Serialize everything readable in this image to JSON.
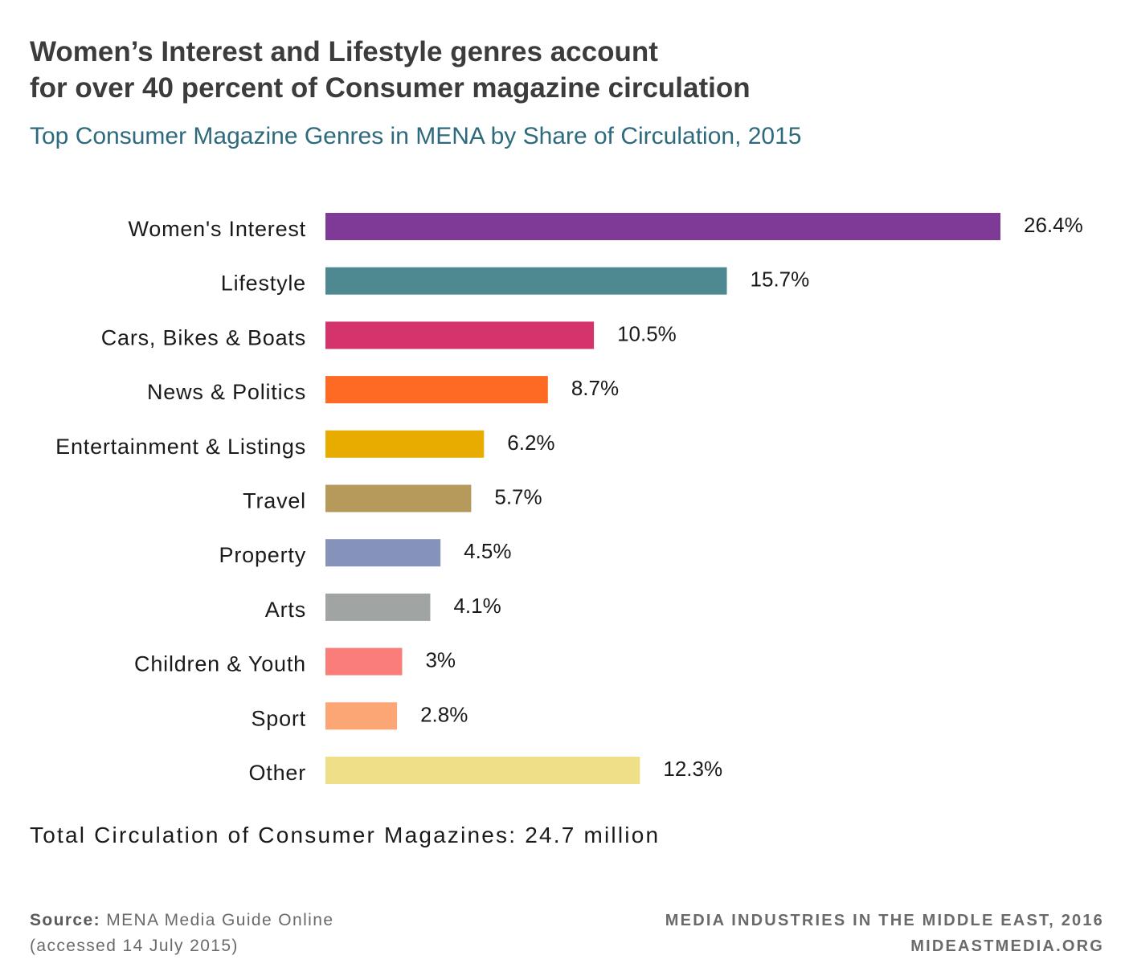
{
  "header": {
    "title_line1": "Women’s Interest and Lifestyle genres account",
    "title_line2": "for over 40 percent of Consumer magazine circulation",
    "subtitle": "Top Consumer Magazine Genres in MENA by Share of Circulation, 2015"
  },
  "chart_data": {
    "type": "bar",
    "orientation": "horizontal",
    "title": "Top Consumer Magazine Genres in MENA by Share of Circulation, 2015",
    "categories": [
      "Women's Interest",
      "Lifestyle",
      "Cars, Bikes & Boats",
      "News & Politics",
      "Entertainment & Listings",
      "Travel",
      "Property",
      "Arts",
      "Children & Youth",
      "Sport",
      "Other"
    ],
    "values": [
      26.4,
      15.7,
      10.5,
      8.7,
      6.2,
      5.7,
      4.5,
      4.1,
      3,
      2.8,
      12.3
    ],
    "value_labels": [
      "26.4%",
      "15.7%",
      "10.5%",
      "8.7%",
      "6.2%",
      "5.7%",
      "4.5%",
      "4.1%",
      "3%",
      "2.8%",
      "12.3%"
    ],
    "colors": [
      "#7e3a96",
      "#4e8891",
      "#d4336c",
      "#fe6a23",
      "#e8ab00",
      "#b59a5b",
      "#8592b9",
      "#a0a4a3",
      "#fb7d79",
      "#fca676",
      "#eedf88"
    ],
    "xlim": [
      0,
      26.4
    ],
    "grid": false,
    "legend": "none"
  },
  "footer": {
    "total": "Total Circulation of Consumer Magazines: 24.7 million",
    "source_label": "Source:",
    "source_text": "MENA Media Guide Online",
    "source_accessed": "(accessed 14 July 2015)",
    "brand_line1": "MEDIA INDUSTRIES IN THE MIDDLE EAST, 2016",
    "brand_line2": "MIDEASTMEDIA.ORG"
  }
}
